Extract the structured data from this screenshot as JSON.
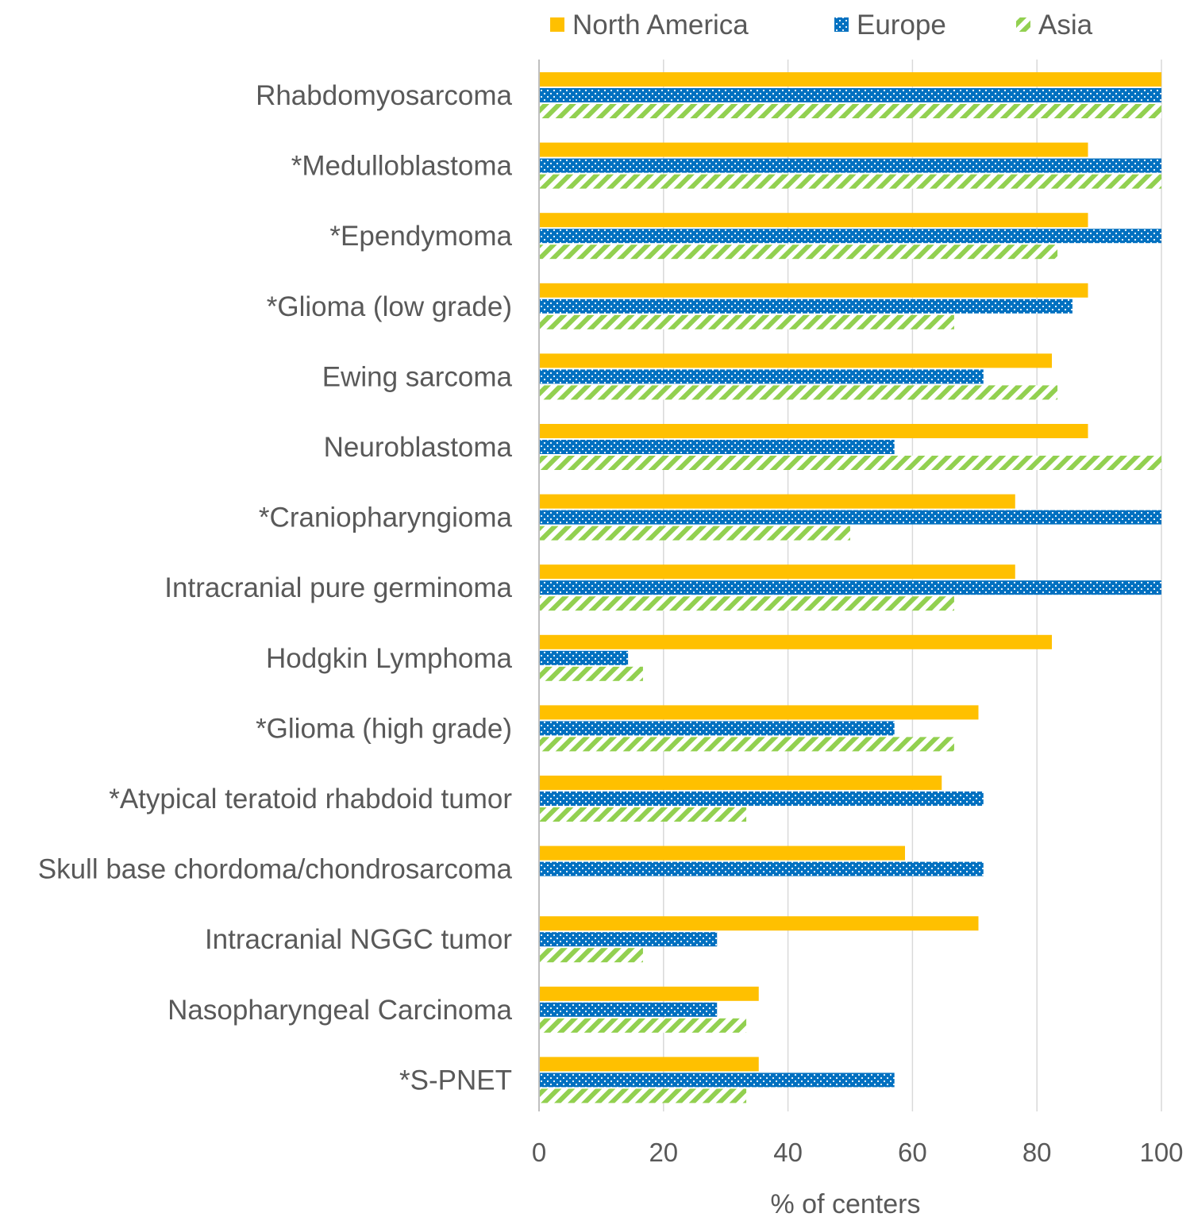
{
  "chart_data": {
    "type": "bar",
    "orientation": "horizontal",
    "categories": [
      "Rhabdomyosarcoma",
      "*Medulloblastoma",
      "*Ependymoma",
      "*Glioma (low grade)",
      "Ewing sarcoma",
      "Neuroblastoma",
      "*Craniopharyngioma",
      "Intracranial pure germinoma",
      "Hodgkin Lymphoma",
      "*Glioma (high grade)",
      "*Atypical teratoid rhabdoid tumor",
      "Skull base chordoma/chondrosarcoma",
      "Intracranial NGGC tumor",
      "Nasopharyngeal Carcinoma",
      "*S-PNET"
    ],
    "series": [
      {
        "name": "North America",
        "color": "#FFC000",
        "pattern": "solid",
        "values": [
          100,
          88.2,
          88.2,
          88.2,
          82.4,
          88.2,
          76.5,
          76.5,
          82.4,
          70.6,
          64.7,
          58.8,
          70.6,
          35.3,
          35.3
        ]
      },
      {
        "name": "Europe",
        "color": "#0070C0",
        "pattern": "dotted",
        "values": [
          100,
          100,
          100,
          85.7,
          71.4,
          57.1,
          100,
          100,
          14.3,
          57.1,
          71.4,
          71.4,
          28.6,
          28.6,
          57.1
        ]
      },
      {
        "name": "Asia",
        "color": "#92D050",
        "pattern": "diagonal-stripes",
        "values": [
          100,
          100,
          83.3,
          66.7,
          83.3,
          100,
          50,
          66.7,
          16.7,
          66.7,
          33.3,
          0,
          16.7,
          33.3,
          33.3
        ]
      }
    ],
    "xlabel": "% of centers",
    "ylabel": "",
    "xlim": [
      0,
      100
    ],
    "xticks": [
      "0",
      "20",
      "40",
      "60",
      "80",
      "100"
    ],
    "grid": "vertical",
    "legend_position": "top"
  }
}
